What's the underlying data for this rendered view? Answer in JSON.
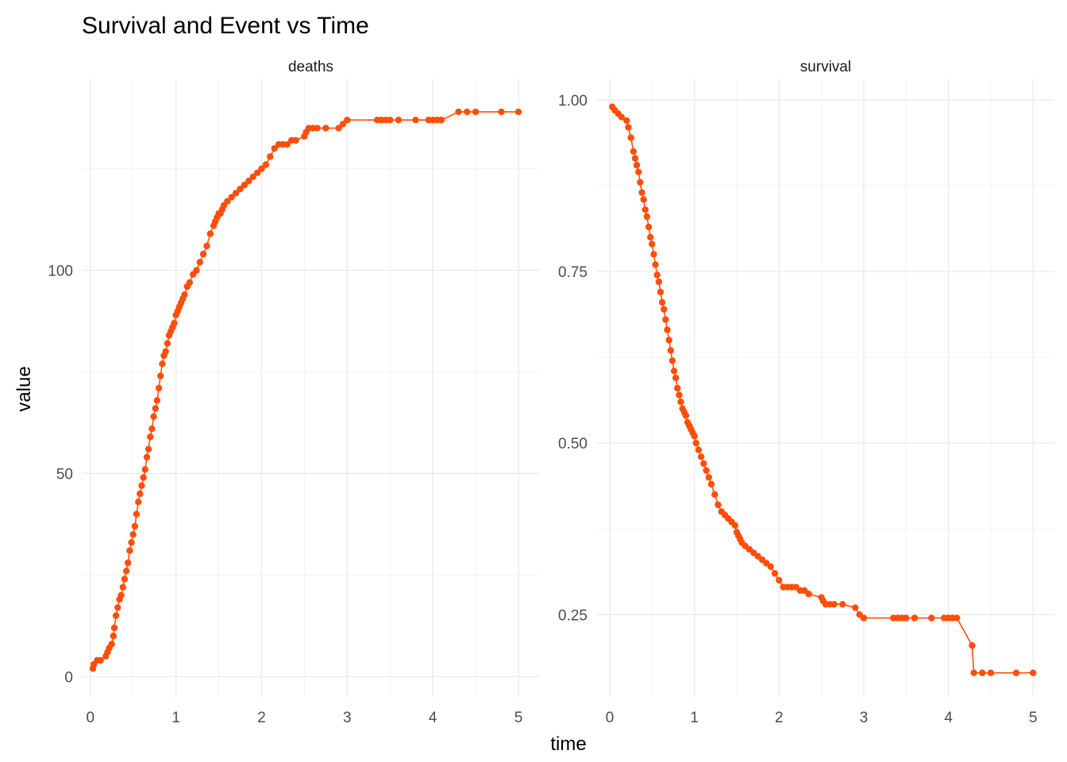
{
  "title": "Survival and Event vs Time",
  "chart_data": {
    "type": "line",
    "title": "Survival and Event vs Time",
    "xlabel": "time",
    "ylabel": "value",
    "color": "#FF4E0A",
    "marker": "circle",
    "panels": [
      {
        "strip": "deaths",
        "xlim": [
          -0.1,
          5.25
        ],
        "ylim": [
          -5,
          147
        ],
        "xticks": [
          0,
          1,
          2,
          3,
          4,
          5
        ],
        "xtick_labels": [
          "0",
          "1",
          "2",
          "3",
          "4",
          "5"
        ],
        "yticks": [
          0,
          50,
          100
        ],
        "ytick_labels": [
          "0",
          "50",
          "100"
        ],
        "yminor": [
          25,
          75,
          125
        ],
        "x": [
          0.03,
          0.04,
          0.08,
          0.12,
          0.18,
          0.2,
          0.22,
          0.25,
          0.27,
          0.28,
          0.3,
          0.32,
          0.34,
          0.36,
          0.38,
          0.4,
          0.42,
          0.44,
          0.46,
          0.48,
          0.5,
          0.52,
          0.54,
          0.56,
          0.58,
          0.6,
          0.62,
          0.64,
          0.66,
          0.68,
          0.7,
          0.72,
          0.74,
          0.76,
          0.78,
          0.8,
          0.82,
          0.84,
          0.86,
          0.88,
          0.9,
          0.92,
          0.94,
          0.96,
          0.98,
          1.0,
          1.02,
          1.04,
          1.06,
          1.08,
          1.1,
          1.13,
          1.16,
          1.2,
          1.24,
          1.28,
          1.32,
          1.36,
          1.4,
          1.44,
          1.46,
          1.48,
          1.5,
          1.52,
          1.54,
          1.56,
          1.6,
          1.65,
          1.7,
          1.75,
          1.8,
          1.85,
          1.9,
          1.95,
          2.0,
          2.05,
          2.1,
          2.15,
          2.2,
          2.25,
          2.3,
          2.35,
          2.4,
          2.5,
          2.52,
          2.55,
          2.6,
          2.65,
          2.75,
          2.9,
          2.95,
          3.0,
          3.35,
          3.4,
          3.45,
          3.5,
          3.6,
          3.8,
          3.95,
          4.0,
          4.05,
          4.1,
          4.3,
          4.4,
          4.5,
          4.8,
          5.0
        ],
        "y": [
          2,
          3,
          4,
          4,
          5,
          6,
          7,
          8,
          10,
          12,
          15,
          17,
          19,
          20,
          22,
          24,
          26,
          28,
          31,
          33,
          35,
          37,
          40,
          43,
          45,
          47,
          49,
          51,
          54,
          56,
          59,
          61,
          64,
          66,
          68,
          71,
          74,
          77,
          79,
          80,
          82,
          84,
          85,
          86,
          87,
          89,
          90,
          91,
          92,
          93,
          94,
          96,
          97,
          99,
          100,
          102,
          104,
          106,
          109,
          111,
          112,
          113,
          114,
          114,
          115,
          116,
          117,
          118,
          119,
          120,
          121,
          122,
          123,
          124,
          125,
          126,
          128,
          130,
          131,
          131,
          131,
          132,
          132,
          133,
          134,
          135,
          135,
          135,
          135,
          135,
          136,
          137,
          137,
          137,
          137,
          137,
          137,
          137,
          137,
          137,
          137,
          137,
          139,
          139,
          139,
          139,
          139
        ]
      },
      {
        "strip": "survival",
        "xlim": [
          -0.15,
          5.25
        ],
        "ylim": [
          0.13,
          1.03
        ],
        "xticks": [
          0,
          1,
          2,
          3,
          4,
          5
        ],
        "xtick_labels": [
          "0",
          "1",
          "2",
          "3",
          "4",
          "5"
        ],
        "yticks": [
          0.25,
          0.5,
          0.75,
          1.0
        ],
        "ytick_labels": [
          "0.25",
          "0.50",
          "0.75",
          "1.00"
        ],
        "yminor": [
          0.375,
          0.625,
          0.875
        ],
        "x": [
          0.03,
          0.06,
          0.1,
          0.14,
          0.2,
          0.22,
          0.25,
          0.28,
          0.3,
          0.32,
          0.34,
          0.36,
          0.38,
          0.4,
          0.42,
          0.44,
          0.46,
          0.48,
          0.5,
          0.52,
          0.54,
          0.56,
          0.58,
          0.6,
          0.62,
          0.64,
          0.66,
          0.68,
          0.7,
          0.72,
          0.74,
          0.76,
          0.78,
          0.8,
          0.82,
          0.84,
          0.86,
          0.88,
          0.9,
          0.92,
          0.94,
          0.96,
          0.98,
          1.0,
          1.02,
          1.05,
          1.08,
          1.11,
          1.14,
          1.17,
          1.2,
          1.24,
          1.28,
          1.32,
          1.36,
          1.4,
          1.44,
          1.48,
          1.5,
          1.52,
          1.54,
          1.56,
          1.6,
          1.65,
          1.7,
          1.75,
          1.8,
          1.85,
          1.9,
          1.95,
          2.0,
          2.05,
          2.1,
          2.15,
          2.2,
          2.25,
          2.3,
          2.35,
          2.5,
          2.52,
          2.55,
          2.6,
          2.65,
          2.75,
          2.9,
          2.95,
          3.0,
          3.35,
          3.4,
          3.45,
          3.5,
          3.6,
          3.8,
          3.95,
          4.0,
          4.05,
          4.1,
          4.28,
          4.3,
          4.4,
          4.5,
          4.8,
          5.0
        ],
        "y": [
          0.99,
          0.985,
          0.98,
          0.975,
          0.97,
          0.96,
          0.945,
          0.925,
          0.915,
          0.905,
          0.895,
          0.88,
          0.865,
          0.855,
          0.84,
          0.83,
          0.815,
          0.8,
          0.79,
          0.775,
          0.76,
          0.745,
          0.735,
          0.72,
          0.705,
          0.695,
          0.68,
          0.665,
          0.65,
          0.635,
          0.62,
          0.605,
          0.595,
          0.58,
          0.57,
          0.56,
          0.55,
          0.545,
          0.54,
          0.53,
          0.525,
          0.52,
          0.515,
          0.51,
          0.5,
          0.49,
          0.48,
          0.47,
          0.46,
          0.45,
          0.44,
          0.425,
          0.41,
          0.4,
          0.395,
          0.39,
          0.385,
          0.38,
          0.37,
          0.365,
          0.36,
          0.355,
          0.35,
          0.345,
          0.34,
          0.335,
          0.33,
          0.325,
          0.32,
          0.31,
          0.3,
          0.29,
          0.29,
          0.29,
          0.29,
          0.285,
          0.285,
          0.28,
          0.275,
          0.27,
          0.265,
          0.265,
          0.265,
          0.265,
          0.26,
          0.25,
          0.245,
          0.245,
          0.245,
          0.245,
          0.245,
          0.245,
          0.245,
          0.245,
          0.245,
          0.245,
          0.245,
          0.205,
          0.165,
          0.165,
          0.165,
          0.165,
          0.165
        ]
      }
    ]
  }
}
